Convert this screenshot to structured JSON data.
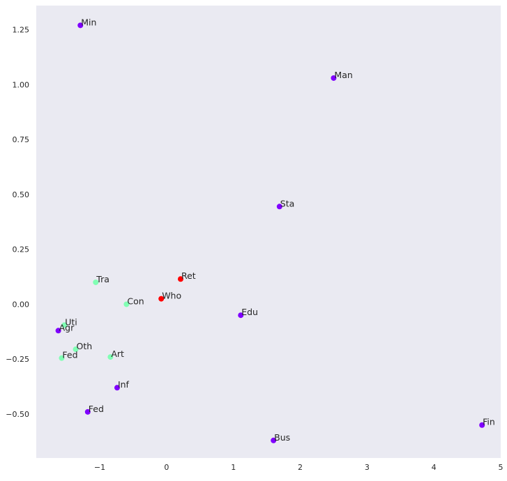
{
  "chart_data": {
    "type": "scatter",
    "title": "",
    "xlabel": "",
    "ylabel": "",
    "xlim": [
      -1.95,
      5.0
    ],
    "ylim": [
      -0.7,
      1.36
    ],
    "xticks": [
      -1,
      0,
      1,
      2,
      3,
      4,
      5
    ],
    "yticks": [
      -0.5,
      -0.25,
      0.0,
      0.25,
      0.5,
      0.75,
      1.0,
      1.25
    ],
    "xtick_labels": [
      "−1",
      "0",
      "1",
      "2",
      "3",
      "4",
      "5"
    ],
    "ytick_labels": [
      "−0.50",
      "−0.25",
      "0.00",
      "0.25",
      "0.50",
      "0.75",
      "1.00",
      "1.25"
    ],
    "grid": false,
    "background": "#eaeaf2",
    "colors": {
      "purple": "#8000ff",
      "green": "#80ffb4",
      "red": "#ff0000"
    },
    "points": [
      {
        "label": "Min",
        "x": -1.29,
        "y": 1.27,
        "color": "purple"
      },
      {
        "label": "Man",
        "x": 2.5,
        "y": 1.03,
        "color": "purple"
      },
      {
        "label": "Sta",
        "x": 1.69,
        "y": 0.445,
        "color": "purple"
      },
      {
        "label": "Tra",
        "x": -1.06,
        "y": 0.1,
        "color": "green"
      },
      {
        "label": "Ret",
        "x": 0.21,
        "y": 0.115,
        "color": "red"
      },
      {
        "label": "Con",
        "x": -0.6,
        "y": 0.0,
        "color": "green"
      },
      {
        "label": "Who",
        "x": -0.08,
        "y": 0.025,
        "color": "red"
      },
      {
        "label": "Edu",
        "x": 1.11,
        "y": -0.05,
        "color": "purple"
      },
      {
        "label": "Uti",
        "x": -1.53,
        "y": -0.095,
        "color": "green"
      },
      {
        "label": "Agr",
        "x": -1.62,
        "y": -0.12,
        "color": "purple"
      },
      {
        "label": "Oth",
        "x": -1.36,
        "y": -0.205,
        "color": "green"
      },
      {
        "label": "Fed",
        "x": -1.57,
        "y": -0.245,
        "color": "green"
      },
      {
        "label": "Art",
        "x": -0.84,
        "y": -0.24,
        "color": "green"
      },
      {
        "label": "Inf",
        "x": -0.74,
        "y": -0.38,
        "color": "purple"
      },
      {
        "label": "Fed",
        "x": -1.18,
        "y": -0.49,
        "color": "purple"
      },
      {
        "label": "Bus",
        "x": 1.6,
        "y": -0.62,
        "color": "purple"
      },
      {
        "label": "Fin",
        "x": 4.72,
        "y": -0.55,
        "color": "purple"
      }
    ]
  }
}
